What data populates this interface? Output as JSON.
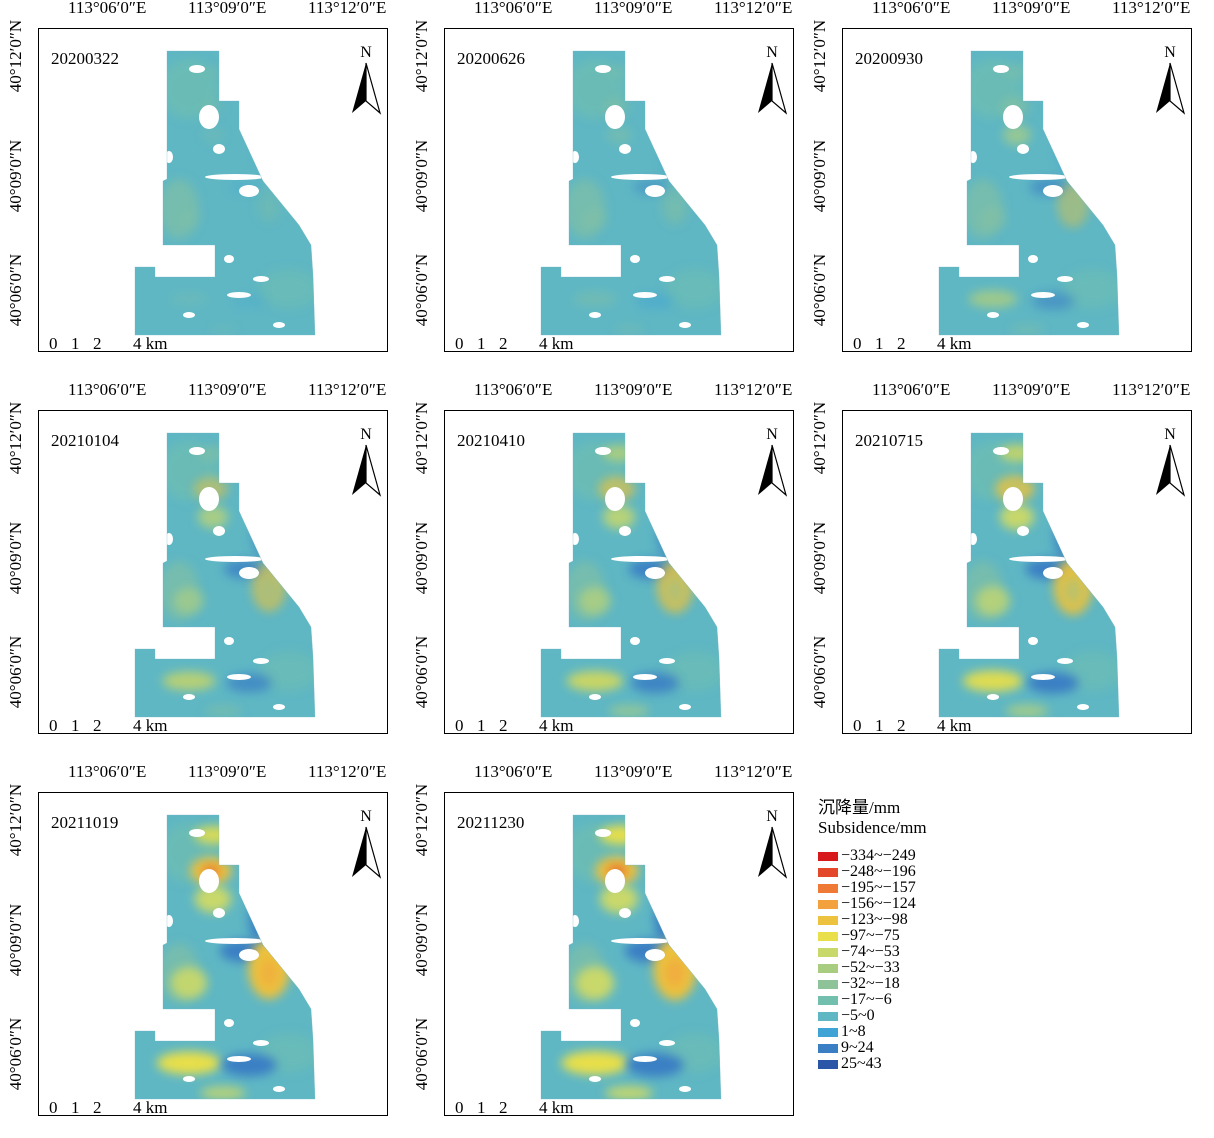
{
  "lon_labels": [
    "113°06′0″E",
    "113°09′0″E",
    "113°12′0″E"
  ],
  "lat_labels": [
    "40°12′0″N",
    "40°09′0″N",
    "40°06′0″N"
  ],
  "scale_bar": {
    "labels": [
      "0",
      "1",
      "2",
      "4 km"
    ]
  },
  "north_label": "N",
  "panels": [
    {
      "date": "20200322",
      "intensity": 0.05
    },
    {
      "date": "20200626",
      "intensity": 0.2
    },
    {
      "date": "20200930",
      "intensity": 0.35
    },
    {
      "date": "20210104",
      "intensity": 0.5
    },
    {
      "date": "20210410",
      "intensity": 0.62
    },
    {
      "date": "20210715",
      "intensity": 0.75
    },
    {
      "date": "20211019",
      "intensity": 0.9
    },
    {
      "date": "20211230",
      "intensity": 1.0
    }
  ],
  "legend": {
    "title_cn": "沉降量/mm",
    "title_en": "Subsidence/mm",
    "items": [
      {
        "label": "−334~−249",
        "color": "#d7191c"
      },
      {
        "label": "−248~−196",
        "color": "#e4482a"
      },
      {
        "label": "−195~−157",
        "color": "#ef7a36"
      },
      {
        "label": "−156~−124",
        "color": "#f3a13f"
      },
      {
        "label": "−123~−98",
        "color": "#ecc23e"
      },
      {
        "label": "−97~−75",
        "color": "#e8df4a"
      },
      {
        "label": "−74~−53",
        "color": "#c9d86a"
      },
      {
        "label": "−52~−33",
        "color": "#a8cd80"
      },
      {
        "label": "−32~−18",
        "color": "#8ec39a"
      },
      {
        "label": "−17~−6",
        "color": "#72bfae"
      },
      {
        "label": "−5~0",
        "color": "#5fb7c4"
      },
      {
        "label": "1~8",
        "color": "#3fa3d6"
      },
      {
        "label": "9~24",
        "color": "#3a7fc4"
      },
      {
        "label": "25~43",
        "color": "#2b56a8"
      }
    ]
  }
}
